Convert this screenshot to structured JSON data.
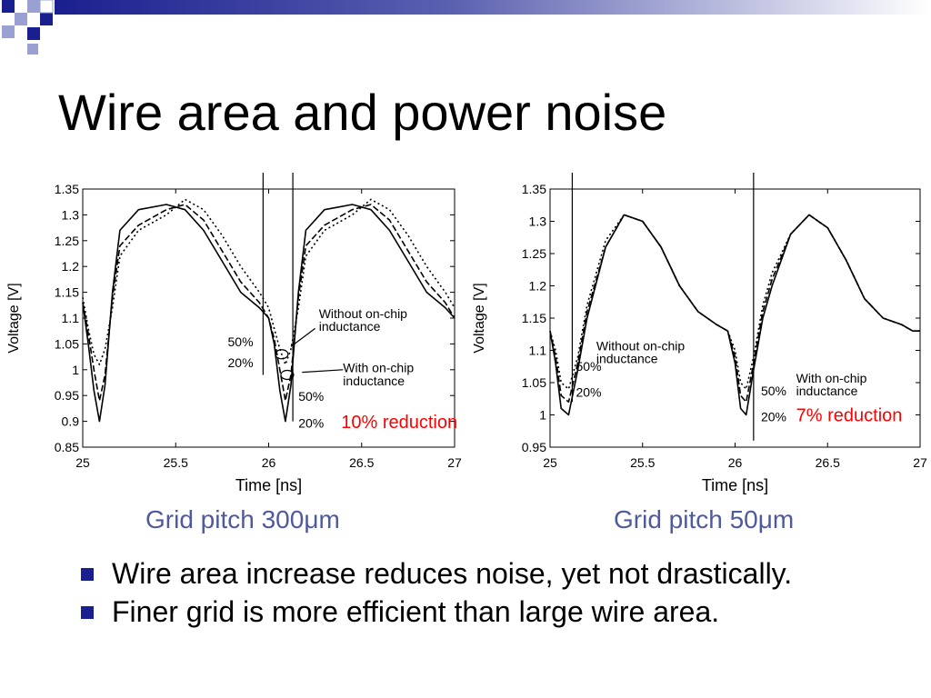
{
  "slide": {
    "title": "Wire area and power noise",
    "bullets": [
      "Wire area increase reduces noise, yet not drastically.",
      "Finer grid is more efficient than large wire area."
    ],
    "colors": {
      "title": "#000000",
      "caption": "#4f5a9e",
      "bullet": "#1a1f8f",
      "highlight": "#ff0000",
      "deco_dark": "#1a1f8f",
      "deco_light": "#9aa0d2"
    }
  },
  "chart_data": [
    {
      "type": "line",
      "caption": "Grid pitch 300μm",
      "xlabel": "Time [ns]",
      "ylabel": "Voltage [V]",
      "xlim": [
        25,
        27
      ],
      "ylim": [
        0.85,
        1.35
      ],
      "xticks": [
        25,
        25.5,
        26,
        26.5,
        27
      ],
      "yticks": [
        0.85,
        0.9,
        0.95,
        1,
        1.05,
        1.1,
        1.15,
        1.2,
        1.25,
        1.3,
        1.35
      ],
      "xtick_labels": [
        "25",
        "25.5",
        "26",
        "26.5",
        "27"
      ],
      "ytick_labels": [
        "0.85",
        "0.9",
        "0.95",
        "1",
        "1.05",
        "1.1",
        "1.15",
        "1.2",
        "1.25",
        "1.3",
        "1.35"
      ],
      "grid": false,
      "series": [
        {
          "x": [
            25,
            25.03,
            25.06,
            25.09,
            25.12,
            25.16,
            25.2,
            25.3,
            25.45,
            25.55,
            25.65,
            25.75,
            25.85,
            25.95,
            26,
            26.03,
            26.06,
            26.09,
            26.12,
            26.16,
            26.2,
            26.3,
            26.45,
            26.55,
            26.65,
            26.75,
            26.85,
            26.95,
            27
          ],
          "y": [
            1.13,
            1.05,
            0.96,
            0.9,
            0.97,
            1.15,
            1.27,
            1.31,
            1.32,
            1.31,
            1.27,
            1.21,
            1.15,
            1.12,
            1.1,
            1.05,
            0.96,
            0.9,
            0.97,
            1.15,
            1.27,
            1.31,
            1.32,
            1.31,
            1.27,
            1.21,
            1.15,
            1.12,
            1.1
          ]
        },
        {
          "x": [
            25,
            25.03,
            25.06,
            25.09,
            25.12,
            25.16,
            25.2,
            25.3,
            25.45,
            25.55,
            25.65,
            25.75,
            25.85,
            25.95,
            26,
            26.03,
            26.06,
            26.09,
            26.12,
            26.16,
            26.2,
            26.3,
            26.45,
            26.55,
            26.65,
            26.75,
            26.85,
            26.95,
            27
          ],
          "y": [
            1.13,
            1.07,
            1.0,
            0.94,
            0.99,
            1.14,
            1.24,
            1.28,
            1.31,
            1.32,
            1.29,
            1.23,
            1.17,
            1.13,
            1.1,
            1.06,
            1.0,
            0.94,
            0.99,
            1.14,
            1.24,
            1.28,
            1.31,
            1.32,
            1.29,
            1.23,
            1.17,
            1.13,
            1.1
          ]
        },
        {
          "x": [
            25,
            25.03,
            25.06,
            25.09,
            25.12,
            25.16,
            25.2,
            25.3,
            25.45,
            25.55,
            25.65,
            25.75,
            25.85,
            25.95,
            26,
            26.03,
            26.06,
            26.09,
            26.12,
            26.16,
            26.2,
            26.3,
            26.45,
            26.55,
            26.65,
            26.75,
            26.85,
            26.95,
            27
          ],
          "y": [
            1.14,
            1.08,
            1.03,
            1.01,
            1.04,
            1.12,
            1.22,
            1.27,
            1.3,
            1.33,
            1.31,
            1.26,
            1.2,
            1.15,
            1.12,
            1.08,
            1.04,
            1.01,
            1.04,
            1.12,
            1.22,
            1.27,
            1.3,
            1.33,
            1.31,
            1.26,
            1.2,
            1.15,
            1.12
          ]
        }
      ],
      "annotations": [
        {
          "text": "Without on-chip",
          "x": 26.27,
          "y": 1.1,
          "color": "#000000",
          "size": "small"
        },
        {
          "text": "inductance",
          "x": 26.27,
          "y": 1.075,
          "color": "#000000",
          "size": "small"
        },
        {
          "text": "50%",
          "x": 25.78,
          "y": 1.045,
          "color": "#000000",
          "size": "small"
        },
        {
          "text": "20%",
          "x": 25.78,
          "y": 1.005,
          "color": "#000000",
          "size": "small"
        },
        {
          "text": "With on-chip",
          "x": 26.4,
          "y": 0.995,
          "color": "#000000",
          "size": "small"
        },
        {
          "text": "inductance",
          "x": 26.4,
          "y": 0.97,
          "color": "#000000",
          "size": "small"
        },
        {
          "text": "50%",
          "x": 26.16,
          "y": 0.94,
          "color": "#000000",
          "size": "small"
        },
        {
          "text": "20%",
          "x": 26.16,
          "y": 0.888,
          "color": "#000000",
          "size": "small"
        },
        {
          "text": "10% reduction",
          "x": 26.39,
          "y": 0.887,
          "color": "#ff0000",
          "size": "large"
        }
      ]
    },
    {
      "type": "line",
      "caption": "Grid pitch 50μm",
      "xlabel": "Time [ns]",
      "ylabel": "Voltage [V]",
      "xlim": [
        25,
        27
      ],
      "ylim": [
        0.95,
        1.35
      ],
      "xticks": [
        25,
        25.5,
        26,
        26.5,
        27
      ],
      "yticks": [
        0.95,
        1,
        1.05,
        1.1,
        1.15,
        1.2,
        1.25,
        1.3,
        1.35
      ],
      "xtick_labels": [
        "25",
        "25.5",
        "26",
        "26.5",
        "27"
      ],
      "ytick_labels": [
        "0.95",
        "1",
        "1.05",
        "1.1",
        "1.15",
        "1.2",
        "1.25",
        "1.3",
        "1.35"
      ],
      "grid": false,
      "series": [
        {
          "x": [
            25,
            25.03,
            25.06,
            25.1,
            25.15,
            25.2,
            25.3,
            25.4,
            25.5,
            25.6,
            25.7,
            25.8,
            25.9,
            25.96,
            26,
            26.03,
            26.06,
            26.1,
            26.15,
            26.2,
            26.3,
            26.4,
            26.5,
            26.6,
            26.7,
            26.8,
            26.9,
            26.96,
            27
          ],
          "y": [
            1.13,
            1.08,
            1.01,
            1.0,
            1.07,
            1.15,
            1.26,
            1.31,
            1.3,
            1.26,
            1.2,
            1.16,
            1.14,
            1.13,
            1.08,
            1.01,
            1.0,
            1.07,
            1.15,
            1.2,
            1.28,
            1.31,
            1.29,
            1.24,
            1.18,
            1.15,
            1.14,
            1.13,
            1.13
          ]
        },
        {
          "x": [
            25,
            25.03,
            25.06,
            25.1,
            25.15,
            25.2,
            25.3,
            25.4,
            25.5,
            25.6,
            25.7,
            25.8,
            25.9,
            25.96,
            26,
            26.03,
            26.06,
            26.1,
            26.15,
            26.2,
            26.3,
            26.4,
            26.5,
            26.6,
            26.7,
            26.8,
            26.9,
            26.96,
            27
          ],
          "y": [
            1.13,
            1.09,
            1.03,
            1.02,
            1.08,
            1.16,
            1.26,
            1.31,
            1.3,
            1.26,
            1.2,
            1.16,
            1.14,
            1.13,
            1.09,
            1.03,
            1.02,
            1.08,
            1.16,
            1.21,
            1.28,
            1.31,
            1.29,
            1.24,
            1.18,
            1.15,
            1.14,
            1.13,
            1.13
          ]
        },
        {
          "x": [
            25,
            25.03,
            25.06,
            25.1,
            25.15,
            25.2,
            25.3,
            25.4,
            25.5,
            25.6,
            25.7,
            25.8,
            25.9,
            25.96,
            26,
            26.03,
            26.06,
            26.1,
            26.15,
            26.2,
            26.3,
            26.4,
            26.5,
            26.6,
            26.7,
            26.8,
            26.9,
            26.96,
            27
          ],
          "y": [
            1.13,
            1.1,
            1.05,
            1.04,
            1.09,
            1.17,
            1.27,
            1.31,
            1.3,
            1.26,
            1.2,
            1.16,
            1.14,
            1.13,
            1.1,
            1.05,
            1.04,
            1.09,
            1.17,
            1.22,
            1.28,
            1.31,
            1.29,
            1.24,
            1.18,
            1.15,
            1.14,
            1.13,
            1.13
          ]
        }
      ],
      "annotations": [
        {
          "text": "Without on-chip",
          "x": 25.25,
          "y": 1.1,
          "color": "#000000",
          "size": "small"
        },
        {
          "text": "inductance",
          "x": 25.25,
          "y": 1.08,
          "color": "#000000",
          "size": "small"
        },
        {
          "text": "50%",
          "x": 25.14,
          "y": 1.068,
          "color": "#000000",
          "size": "small"
        },
        {
          "text": "20%",
          "x": 25.14,
          "y": 1.028,
          "color": "#000000",
          "size": "small"
        },
        {
          "text": "With on-chip",
          "x": 26.33,
          "y": 1.05,
          "color": "#000000",
          "size": "small"
        },
        {
          "text": "inductance",
          "x": 26.33,
          "y": 1.03,
          "color": "#000000",
          "size": "small"
        },
        {
          "text": "50%",
          "x": 26.14,
          "y": 1.03,
          "color": "#000000",
          "size": "small"
        },
        {
          "text": "20%",
          "x": 26.14,
          "y": 0.99,
          "color": "#000000",
          "size": "small"
        },
        {
          "text": "7% reduction",
          "x": 26.33,
          "y": 0.99,
          "color": "#ff0000",
          "size": "large"
        }
      ]
    }
  ]
}
